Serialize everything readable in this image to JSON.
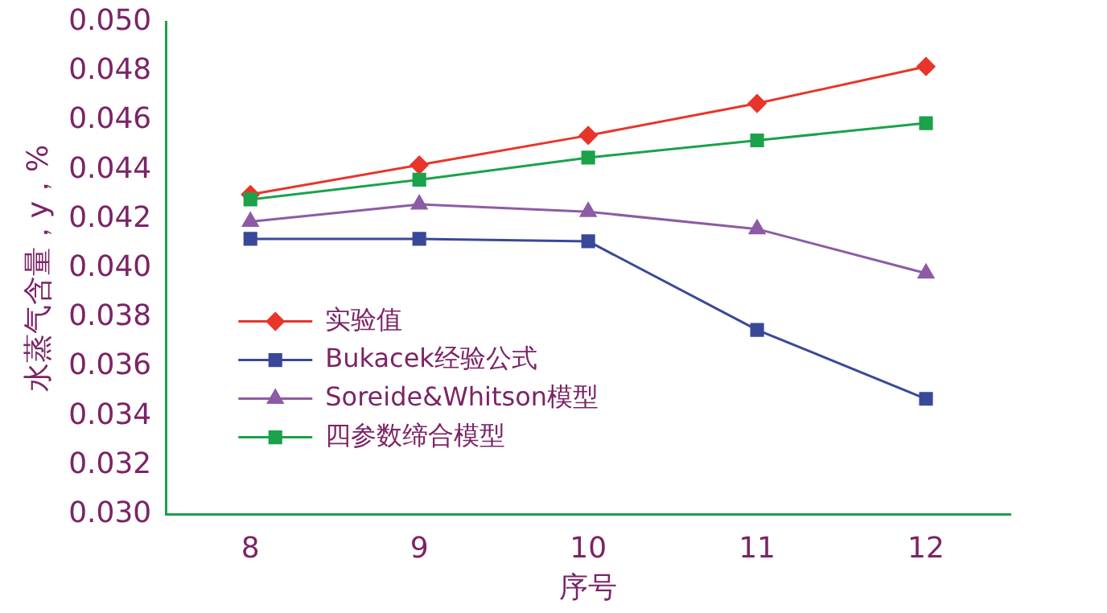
{
  "chart_data": {
    "type": "line",
    "xlabel": "序号",
    "ylabel": "水蒸气含量，y，%",
    "categories": [
      "8",
      "9",
      "10",
      "11",
      "12"
    ],
    "series": [
      {
        "name": "实验值",
        "color": "#e8352b",
        "marker": "diamond",
        "values": [
          0.043,
          0.0442,
          0.0454,
          0.0467,
          0.0482
        ]
      },
      {
        "name": "Bukacek经验公式",
        "color": "#3a4899",
        "marker": "square",
        "values": [
          0.0412,
          0.0412,
          0.0411,
          0.0375,
          0.0347
        ]
      },
      {
        "name": "Soreide&Whitson模型",
        "color": "#8d5ba6",
        "marker": "triangle",
        "values": [
          0.0419,
          0.0426,
          0.0423,
          0.0416,
          0.0398
        ]
      },
      {
        "name": "四参数缔合模型",
        "color": "#1ba24b",
        "marker": "square",
        "values": [
          0.0428,
          0.0436,
          0.0445,
          0.0452,
          0.0459
        ]
      }
    ],
    "ylim": [
      0.03,
      0.05
    ],
    "yticks": [
      {
        "value": 0.03,
        "label": "0.030"
      },
      {
        "value": 0.032,
        "label": "0.032"
      },
      {
        "value": 0.034,
        "label": "0.034"
      },
      {
        "value": 0.036,
        "label": "0.036"
      },
      {
        "value": 0.038,
        "label": "0.038"
      },
      {
        "value": 0.04,
        "label": "0.040"
      },
      {
        "value": 0.042,
        "label": "0.042"
      },
      {
        "value": 0.044,
        "label": "0.044"
      },
      {
        "value": 0.046,
        "label": "0.046"
      },
      {
        "value": 0.048,
        "label": "0.048"
      },
      {
        "value": 0.05,
        "label": "0.050"
      }
    ],
    "grid": false,
    "legend": "bottom left",
    "line_style": "solid"
  }
}
